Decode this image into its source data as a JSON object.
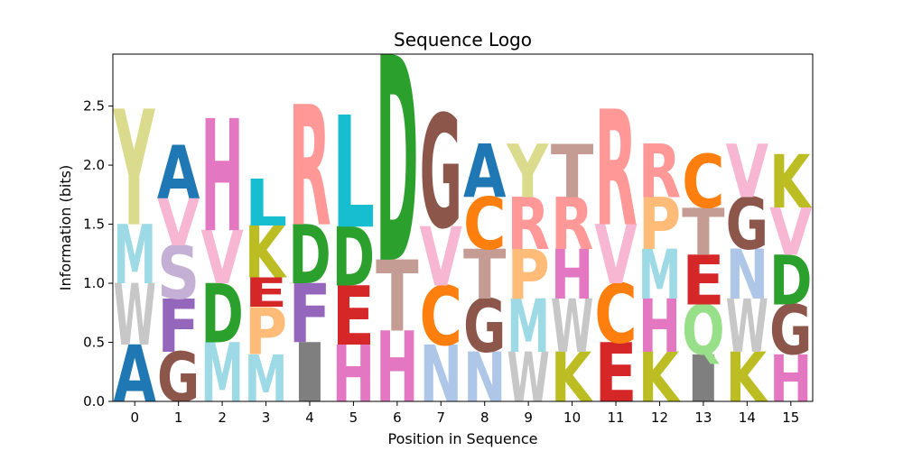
{
  "chart_data": {
    "type": "sequence-logo",
    "title": "Sequence Logo",
    "xlabel": "Position in Sequence",
    "ylabel": "Information (bits)",
    "ylim": [
      0,
      2.94
    ],
    "xticks": [
      "0",
      "1",
      "2",
      "3",
      "4",
      "5",
      "6",
      "7",
      "8",
      "9",
      "10",
      "11",
      "12",
      "13",
      "14",
      "15"
    ],
    "yticks": [
      "0.0",
      "0.5",
      "1.0",
      "1.5",
      "2.0",
      "2.5"
    ],
    "grid": false,
    "colors": {
      "A": "#1f77b4",
      "C": "#ff7f0e",
      "D": "#2ca02c",
      "E": "#d62728",
      "F": "#9467bd",
      "G": "#8c564b",
      "H": "#e377c2",
      "I": "#7f7f7f",
      "K": "#bcbd22",
      "L": "#17becf",
      "M": "#9edae5",
      "N": "#aec7e8",
      "P": "#ffbb78",
      "Q": "#98df8a",
      "R": "#ff9896",
      "S": "#c5b0d5",
      "T": "#c49c94",
      "V": "#f7b6d2",
      "W": "#c7c7c7",
      "Y": "#dbdb8d"
    },
    "positions": [
      [
        {
          "letter": "A",
          "height": 0.48
        },
        {
          "letter": "W",
          "height": 0.52
        },
        {
          "letter": "M",
          "height": 0.5
        },
        {
          "letter": "Y",
          "height": 0.98
        }
      ],
      [
        {
          "letter": "G",
          "height": 0.42
        },
        {
          "letter": "F",
          "height": 0.45
        },
        {
          "letter": "S",
          "height": 0.45
        },
        {
          "letter": "V",
          "height": 0.4
        },
        {
          "letter": "A",
          "height": 0.45
        }
      ],
      [
        {
          "letter": "M",
          "height": 0.5
        },
        {
          "letter": "D",
          "height": 0.5
        },
        {
          "letter": "V",
          "height": 0.45
        },
        {
          "letter": "H",
          "height": 0.95
        }
      ],
      [
        {
          "letter": "M",
          "height": 0.4
        },
        {
          "letter": "P",
          "height": 0.4
        },
        {
          "letter": "E",
          "height": 0.25
        },
        {
          "letter": "K",
          "height": 0.44
        },
        {
          "letter": "L",
          "height": 0.4
        }
      ],
      [
        {
          "letter": "I",
          "height": 0.5
        },
        {
          "letter": "F",
          "height": 0.5
        },
        {
          "letter": "D",
          "height": 0.5
        },
        {
          "letter": "R",
          "height": 1.02
        }
      ],
      [
        {
          "letter": "H",
          "height": 0.48
        },
        {
          "letter": "E",
          "height": 0.5
        },
        {
          "letter": "D",
          "height": 0.5
        },
        {
          "letter": "L",
          "height": 0.95
        }
      ],
      [
        {
          "letter": "H",
          "height": 0.6
        },
        {
          "letter": "T",
          "height": 0.6
        },
        {
          "letter": "D",
          "height": 1.74
        }
      ],
      [
        {
          "letter": "N",
          "height": 0.48
        },
        {
          "letter": "C",
          "height": 0.5
        },
        {
          "letter": "V",
          "height": 0.5
        },
        {
          "letter": "G",
          "height": 0.96
        }
      ],
      [
        {
          "letter": "N",
          "height": 0.42
        },
        {
          "letter": "G",
          "height": 0.45
        },
        {
          "letter": "T",
          "height": 0.42
        },
        {
          "letter": "C",
          "height": 0.44
        },
        {
          "letter": "A",
          "height": 0.45
        }
      ],
      [
        {
          "letter": "W",
          "height": 0.42
        },
        {
          "letter": "M",
          "height": 0.45
        },
        {
          "letter": "P",
          "height": 0.42
        },
        {
          "letter": "R",
          "height": 0.44
        },
        {
          "letter": "Y",
          "height": 0.45
        }
      ],
      [
        {
          "letter": "K",
          "height": 0.42
        },
        {
          "letter": "W",
          "height": 0.45
        },
        {
          "letter": "H",
          "height": 0.42
        },
        {
          "letter": "R",
          "height": 0.44
        },
        {
          "letter": "T",
          "height": 0.45
        }
      ],
      [
        {
          "letter": "E",
          "height": 0.5
        },
        {
          "letter": "C",
          "height": 0.5
        },
        {
          "letter": "V",
          "height": 0.5
        },
        {
          "letter": "R",
          "height": 0.98
        }
      ],
      [
        {
          "letter": "K",
          "height": 0.42
        },
        {
          "letter": "H",
          "height": 0.45
        },
        {
          "letter": "M",
          "height": 0.42
        },
        {
          "letter": "P",
          "height": 0.44
        },
        {
          "letter": "R",
          "height": 0.45
        }
      ],
      [
        {
          "letter": "I",
          "height": 0.4
        },
        {
          "letter": "Q",
          "height": 0.42
        },
        {
          "letter": "E",
          "height": 0.42
        },
        {
          "letter": "T",
          "height": 0.4
        },
        {
          "letter": "C",
          "height": 0.45
        }
      ],
      [
        {
          "letter": "K",
          "height": 0.42
        },
        {
          "letter": "W",
          "height": 0.45
        },
        {
          "letter": "N",
          "height": 0.42
        },
        {
          "letter": "G",
          "height": 0.44
        },
        {
          "letter": "V",
          "height": 0.45
        }
      ],
      [
        {
          "letter": "H",
          "height": 0.4
        },
        {
          "letter": "G",
          "height": 0.42
        },
        {
          "letter": "D",
          "height": 0.42
        },
        {
          "letter": "V",
          "height": 0.4
        },
        {
          "letter": "K",
          "height": 0.45
        }
      ]
    ]
  }
}
